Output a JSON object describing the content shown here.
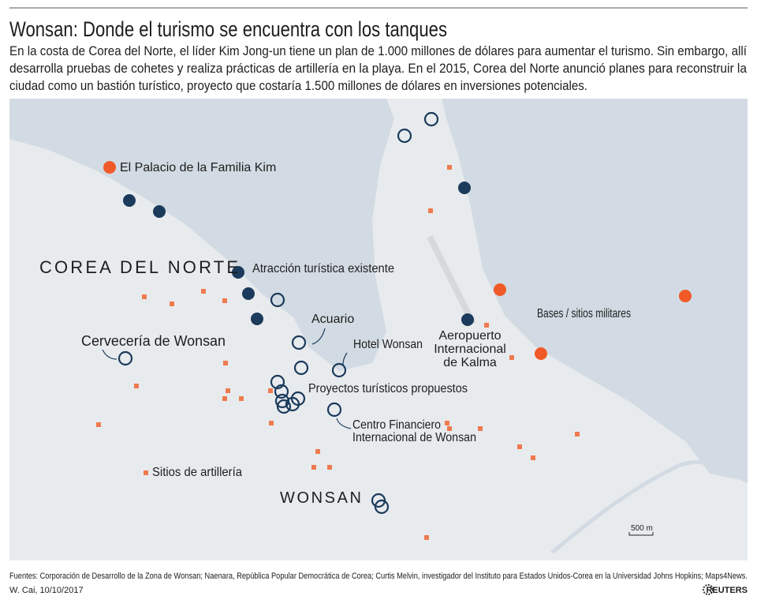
{
  "header": {
    "title": "Wonsan: Donde el turismo se encuentra con los tanques",
    "description": [
      "En la costa de Corea del Norte, el líder Kim Jong-un tiene un plan de 1.000 millones de dólares para aumentar el turismo. Sin embargo, allí",
      "desarrolla pruebas de cohetes y realiza prácticas de artillería en la playa. En el 2015, Corea del Norte anunció planes para reconstruir la",
      "ciudad como un bastión turístico, proyecto que costaría 1.500 millones de dólares en inversiones potenciales."
    ]
  },
  "map": {
    "labels": {
      "palace": "El Palacio de la Familia Kim",
      "country": "COREA DEL NORTE",
      "existing": "Atracción turística existente",
      "aquarium": "Acuario",
      "brewery": "Cervecería de Wonsan",
      "hotel": "Hotel Wonsan",
      "airport": [
        "Aeropuerto",
        "Internacional",
        "de Kalma"
      ],
      "military": "Bases / sitios militares",
      "proposed": "Proyectos turísticos propuestos",
      "finance": [
        "Centro Financiero",
        "Internacional de Wonsan"
      ],
      "artillery": "Sitios de artillería",
      "city": "WONSAN"
    },
    "scale": "500 m"
  },
  "footer": {
    "sources": "Fuentes: Corporación de Desarrollo de la Zona de Wonsan; Naenara, República Popular Democrática de Corea; Curtis Melvin, investigador  del Instituto para Estados Unidos-Corea en la Universidad Johns Hopkins; Maps4News.",
    "credit": "W. Cai,  10/10/2017",
    "logo": "REUTERS"
  }
}
